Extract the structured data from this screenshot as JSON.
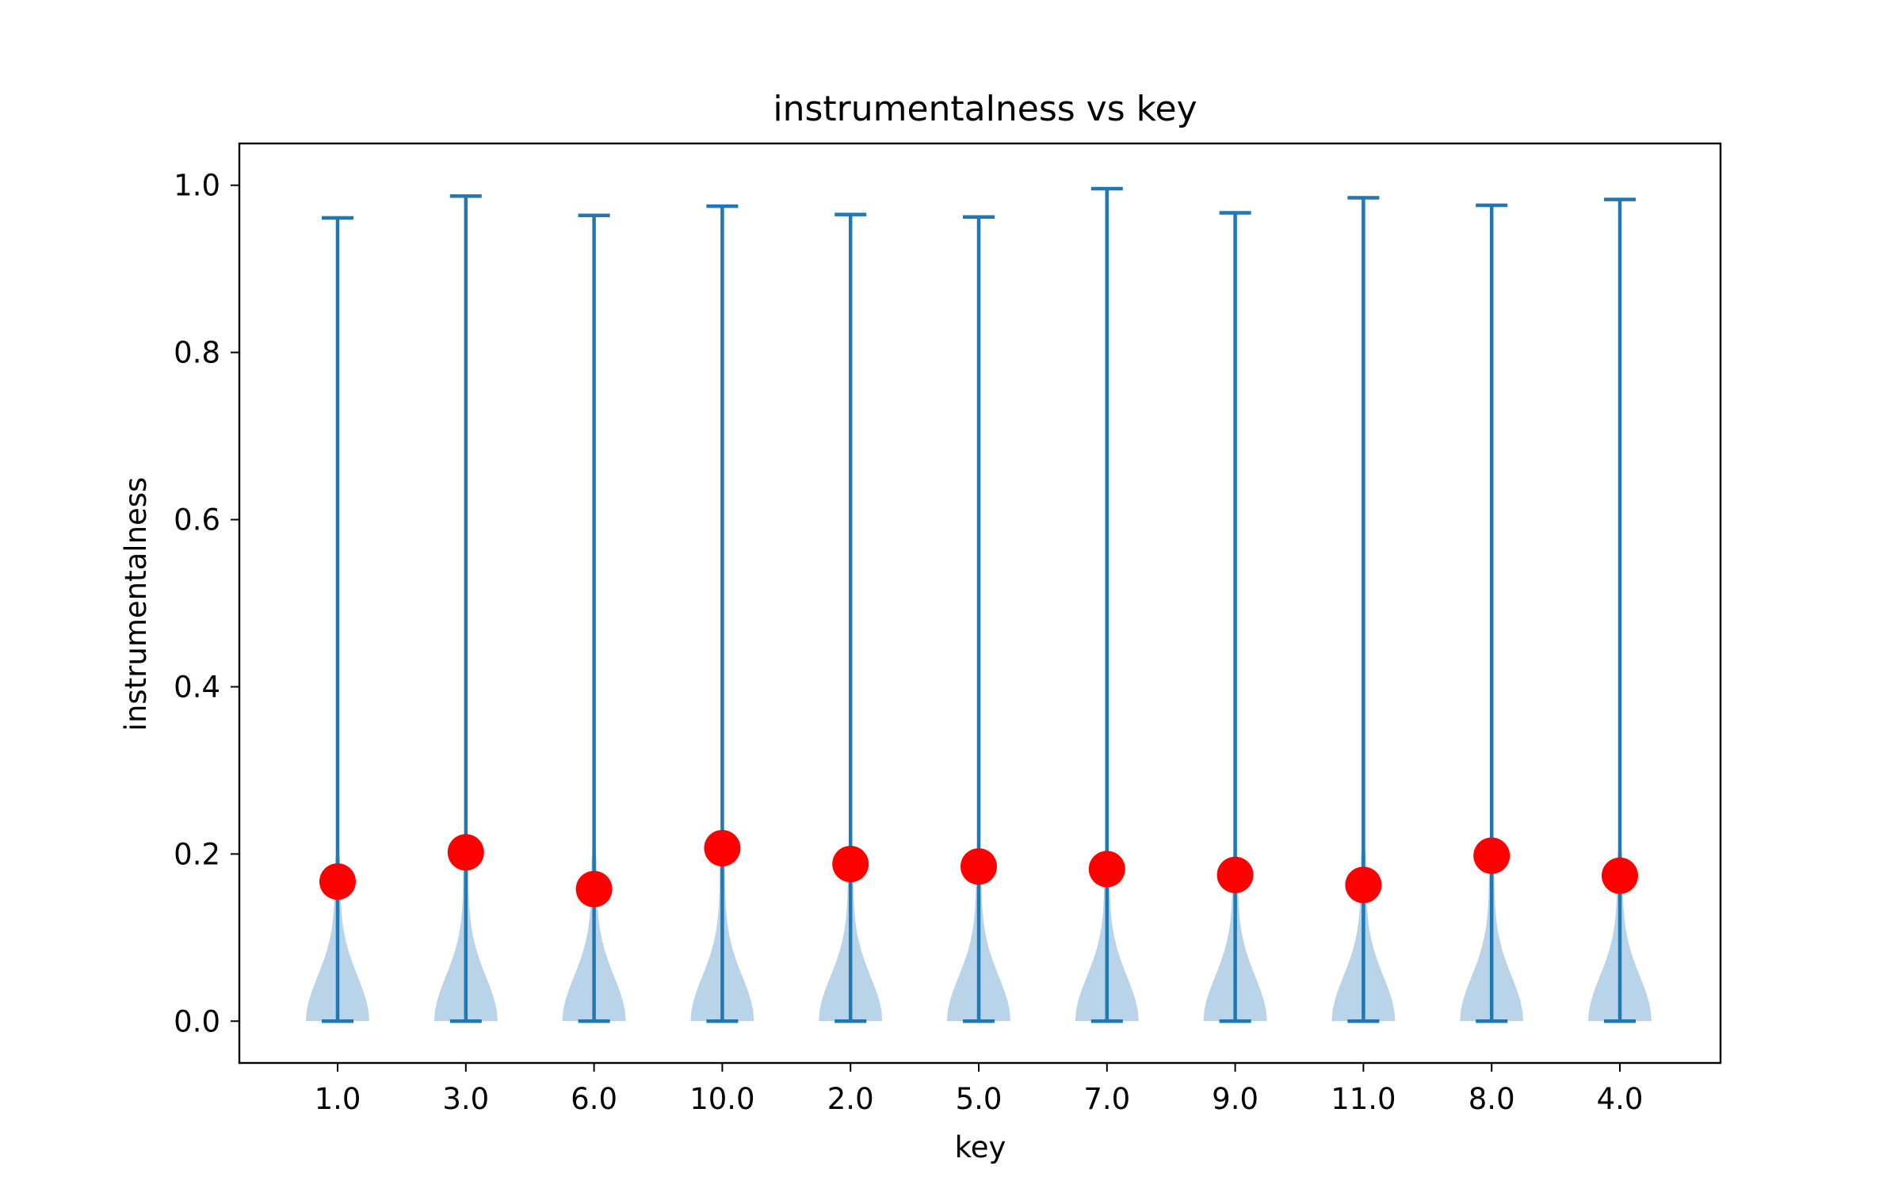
{
  "chart_data": {
    "type": "violin",
    "title": "instrumentalness vs key",
    "xlabel": "key",
    "ylabel": "instrumentalness",
    "categories": [
      "1.0",
      "3.0",
      "6.0",
      "10.0",
      "2.0",
      "5.0",
      "7.0",
      "9.0",
      "11.0",
      "8.0",
      "4.0"
    ],
    "min": [
      0.0,
      0.0,
      0.0,
      0.0,
      0.0,
      0.0,
      0.0,
      0.0,
      0.0,
      0.0,
      0.0
    ],
    "max": [
      0.961,
      0.987,
      0.964,
      0.975,
      0.965,
      0.962,
      0.996,
      0.967,
      0.985,
      0.976,
      0.983
    ],
    "mean": [
      0.167,
      0.202,
      0.158,
      0.207,
      0.188,
      0.185,
      0.182,
      0.175,
      0.163,
      0.198,
      0.174
    ],
    "yticks": [
      "0.0",
      "0.2",
      "0.4",
      "0.6",
      "0.8",
      "1.0"
    ],
    "ylim": [
      -0.05,
      1.05
    ],
    "colors": {
      "violin_fill": "#b9d4e8",
      "violin_line": "#1f77b4",
      "mean_marker": "#ff0000"
    },
    "grid": false,
    "legend": "none"
  }
}
